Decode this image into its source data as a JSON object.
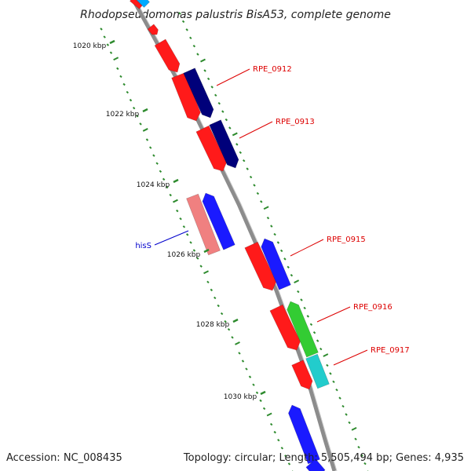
{
  "title": "Rhodopseudomonas palustris BisA53, complete genome",
  "accession_text": "Accession: NC_008435",
  "summary_text": "Topology: circular; Length: 5,505,494 bp; Genes: 4,935",
  "colors": {
    "backbone": "#8c8c8c",
    "tick": "#2e8b2e",
    "label_red": "#dd0000",
    "label_blue": "#0000cc",
    "strand_forward_red": "#ff1a1a",
    "strand_forward_navy": "#00007a",
    "strand_reverse_blue": "#1a1aff",
    "strand_reverse_pink": "#f08080",
    "strand_green": "#33cc33",
    "strand_cyan": "#22cccc"
  },
  "kbp_labels": [
    "1020 kbp",
    "1022 kbp",
    "1024 kbp",
    "1026 kbp",
    "1028 kbp",
    "1030 kbp"
  ],
  "gene_labels": [
    {
      "text": "RPE_0912",
      "color": "red"
    },
    {
      "text": "RPE_0913",
      "color": "red"
    },
    {
      "text": "hisS",
      "color": "blue"
    },
    {
      "text": "RPE_0915",
      "color": "red"
    },
    {
      "text": "RPE_0916",
      "color": "red"
    },
    {
      "text": "RPE_0917",
      "color": "red"
    }
  ]
}
